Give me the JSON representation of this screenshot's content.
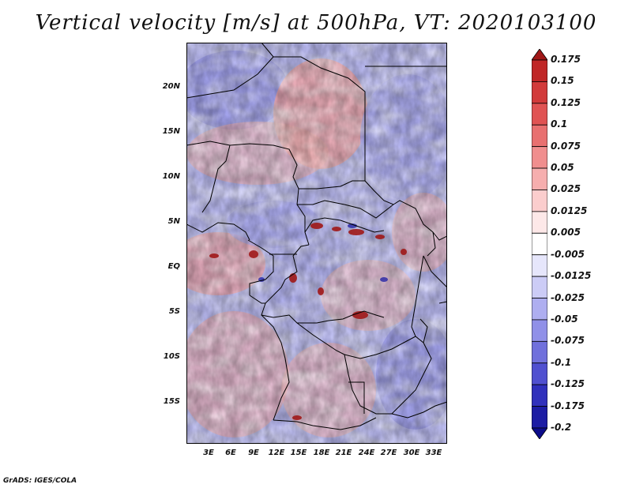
{
  "title": "Vertical velocity [m/s] at 500hPa, VT: 2020103100",
  "credit": "GrADS: IGES/COLA",
  "lat_labels": [
    "20N",
    "15N",
    "10N",
    "5N",
    "EQ",
    "5S",
    "10S",
    "15S"
  ],
  "lon_labels": [
    "3E",
    "6E",
    "9E",
    "12E",
    "15E",
    "18E",
    "21E",
    "24E",
    "27E",
    "30E",
    "33E"
  ],
  "colorbar": {
    "labels": [
      "0.175",
      "0.15",
      "0.125",
      "0.1",
      "0.075",
      "0.05",
      "0.025",
      "0.0125",
      "0.005",
      "-0.005",
      "-0.0125",
      "-0.025",
      "-0.05",
      "-0.075",
      "-0.1",
      "-0.125",
      "-0.175",
      "-0.2"
    ],
    "colors": [
      "#a01818",
      "#c02626",
      "#d23a3a",
      "#e05353",
      "#e87070",
      "#f08e8e",
      "#f6aeae",
      "#fbcdcd",
      "#fde8e8",
      "#ffffff",
      "#e6e6fb",
      "#ccccf6",
      "#aeaef0",
      "#9090e8",
      "#7070dc",
      "#5050d0",
      "#3030bc",
      "#1c1ca4",
      "#0c0c8a"
    ]
  }
}
